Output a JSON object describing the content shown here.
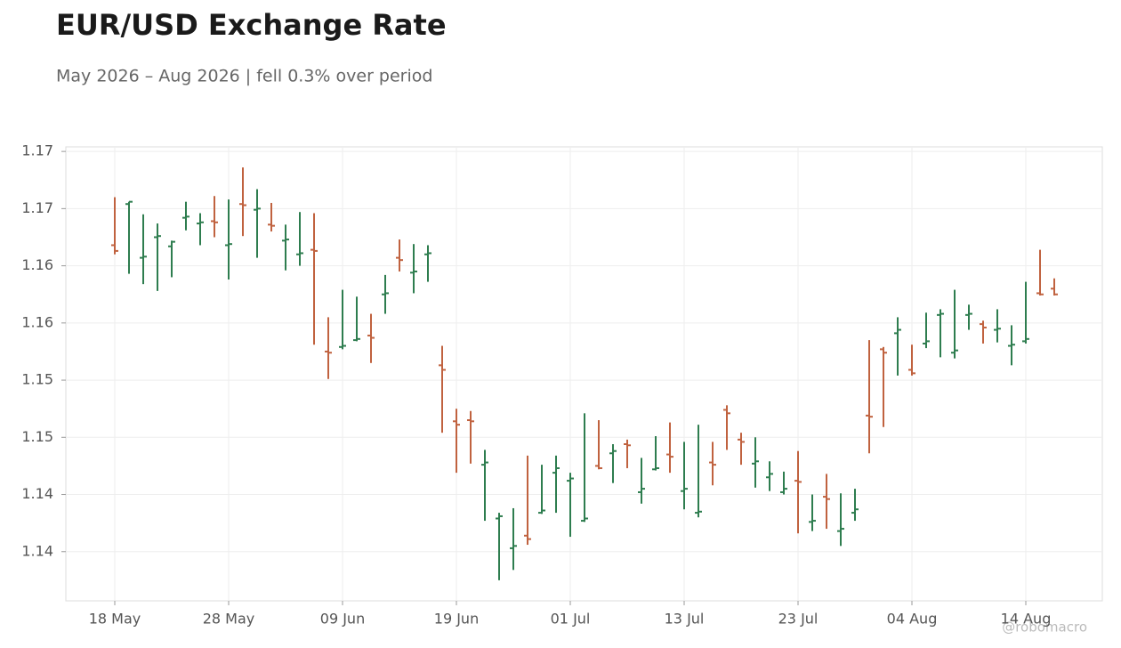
{
  "chart_data": {
    "type": "ohlc",
    "title": "EUR/USD Exchange Rate",
    "subtitle": "May 2026 – Aug 2026 | fell 0.3% over period",
    "watermark": "@robomacro",
    "categories": [
      "18 May",
      null,
      null,
      null,
      null,
      null,
      null,
      null,
      "28 May",
      null,
      null,
      null,
      null,
      null,
      null,
      null,
      "09 Jun",
      null,
      null,
      null,
      null,
      null,
      null,
      null,
      "19 Jun",
      null,
      null,
      null,
      null,
      null,
      null,
      null,
      "01 Jul",
      null,
      null,
      null,
      null,
      null,
      null,
      null,
      "13 Jul",
      null,
      null,
      null,
      null,
      null,
      null,
      null,
      "23 Jul",
      null,
      null,
      null,
      null,
      null,
      null,
      null,
      "04 Aug",
      null,
      null,
      null,
      null,
      null,
      null,
      null,
      "14 Aug",
      null,
      null
    ],
    "open": [
      1.1618,
      1.1654,
      1.1607,
      1.1625,
      1.1617,
      1.1642,
      1.1637,
      1.1639,
      1.1618,
      1.1654,
      1.1649,
      1.1636,
      1.1622,
      1.161,
      1.1614,
      1.1525,
      1.1529,
      1.1535,
      1.1539,
      1.1575,
      1.1607,
      1.1594,
      1.161,
      1.1513,
      1.1464,
      1.1465,
      1.1426,
      1.1379,
      1.1353,
      1.1364,
      1.1384,
      1.1419,
      1.1412,
      1.1377,
      1.1425,
      1.1436,
      1.1444,
      1.1402,
      1.1422,
      1.1435,
      1.1403,
      1.1384,
      1.1428,
      1.1474,
      1.1448,
      1.1427,
      1.1415,
      1.1402,
      1.1412,
      1.1376,
      1.1398,
      1.1368,
      1.1384,
      1.1469,
      1.1527,
      1.1541,
      1.1509,
      1.1532,
      1.1557,
      1.1524,
      1.1557,
      1.1549,
      1.1544,
      1.153,
      1.1534,
      1.1576,
      1.158
    ],
    "high": [
      1.166,
      1.1656,
      1.1645,
      1.1637,
      1.1622,
      1.1656,
      1.1646,
      1.1661,
      1.1658,
      1.1686,
      1.1667,
      1.1655,
      1.1636,
      1.1647,
      1.1646,
      1.1555,
      1.1579,
      1.1573,
      1.1558,
      1.1592,
      1.1623,
      1.1619,
      1.1618,
      1.153,
      1.1475,
      1.1473,
      1.1439,
      1.1384,
      1.1388,
      1.1434,
      1.1426,
      1.1434,
      1.1419,
      1.1471,
      1.1465,
      1.1444,
      1.1448,
      1.1432,
      1.1451,
      1.1463,
      1.1446,
      1.1461,
      1.1446,
      1.1478,
      1.1454,
      1.145,
      1.1429,
      1.142,
      1.1438,
      1.14,
      1.1418,
      1.1401,
      1.1405,
      1.1535,
      1.1529,
      1.1555,
      1.1531,
      1.1559,
      1.1562,
      1.1579,
      1.1566,
      1.1552,
      1.1562,
      1.1548,
      1.1586,
      1.1614,
      1.1589
    ],
    "low": [
      1.161,
      1.1593,
      1.1584,
      1.1578,
      1.159,
      1.1631,
      1.1618,
      1.1625,
      1.1588,
      1.1626,
      1.1607,
      1.163,
      1.1596,
      1.16,
      1.1531,
      1.1501,
      1.1527,
      1.1534,
      1.1515,
      1.1558,
      1.1595,
      1.1576,
      1.1586,
      1.1454,
      1.1419,
      1.1427,
      1.1377,
      1.1325,
      1.1334,
      1.1356,
      1.1383,
      1.1384,
      1.1363,
      1.1376,
      1.1422,
      1.141,
      1.1423,
      1.1392,
      1.1421,
      1.1419,
      1.1387,
      1.138,
      1.1408,
      1.1439,
      1.1426,
      1.1406,
      1.1403,
      1.14,
      1.1366,
      1.1368,
      1.137,
      1.1355,
      1.1377,
      1.1436,
      1.1459,
      1.1504,
      1.1504,
      1.1528,
      1.152,
      1.1519,
      1.1544,
      1.1532,
      1.1533,
      1.1513,
      1.1532,
      1.1574,
      1.1574
    ],
    "close": [
      1.1613,
      1.1656,
      1.1608,
      1.1626,
      1.1621,
      1.1643,
      1.1638,
      1.1638,
      1.1619,
      1.1653,
      1.165,
      1.1635,
      1.1623,
      1.1611,
      1.1613,
      1.1524,
      1.153,
      1.1536,
      1.1537,
      1.1576,
      1.1605,
      1.1595,
      1.1611,
      1.1509,
      1.1461,
      1.1464,
      1.1428,
      1.1381,
      1.1355,
      1.1361,
      1.1386,
      1.1423,
      1.1414,
      1.1379,
      1.1423,
      1.1438,
      1.1443,
      1.1405,
      1.1423,
      1.1433,
      1.1405,
      1.1385,
      1.1426,
      1.1471,
      1.1446,
      1.1429,
      1.1418,
      1.1405,
      1.1411,
      1.1377,
      1.1396,
      1.137,
      1.1387,
      1.1468,
      1.1524,
      1.1544,
      1.1506,
      1.1534,
      1.1558,
      1.1526,
      1.1558,
      1.1546,
      1.1545,
      1.1531,
      1.1536,
      1.1575,
      1.1575
    ],
    "up_color": "#2e7d4f",
    "down_color": "#c0623f",
    "ylim": [
      1.1307,
      1.1704
    ],
    "yticks": [
      {
        "value": 1.17,
        "label": "1.17"
      },
      {
        "value": 1.165,
        "label": "1.17"
      },
      {
        "value": 1.16,
        "label": "1.16"
      },
      {
        "value": 1.155,
        "label": "1.16"
      },
      {
        "value": 1.15,
        "label": "1.15"
      },
      {
        "value": 1.145,
        "label": "1.15"
      },
      {
        "value": 1.14,
        "label": "1.14"
      },
      {
        "value": 1.135,
        "label": "1.14"
      }
    ],
    "grid": true
  }
}
